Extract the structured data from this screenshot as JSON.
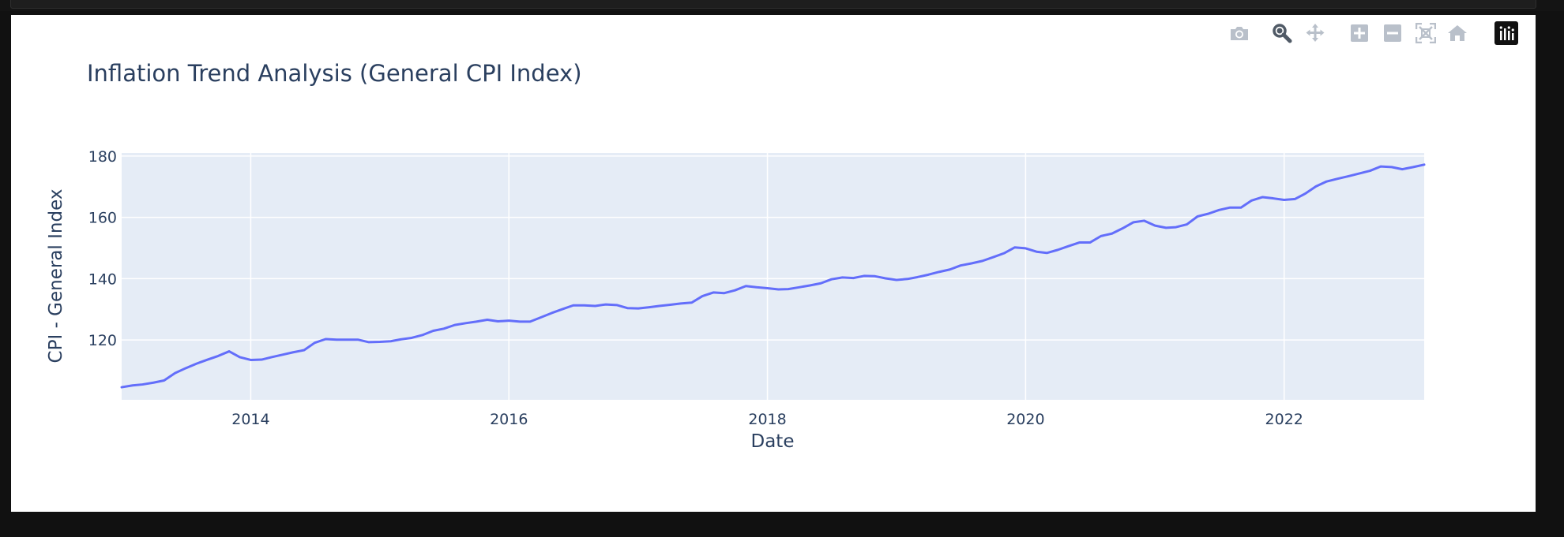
{
  "modebar": {
    "buttons": [
      {
        "name": "download-plot-button",
        "icon": "camera-icon"
      },
      {
        "name": "zoom-button",
        "icon": "magnifier-icon",
        "active": true
      },
      {
        "name": "pan-button",
        "icon": "pan-arrows-icon"
      },
      {
        "name": "zoom-in-button",
        "icon": "plus-square-icon"
      },
      {
        "name": "zoom-out-button",
        "icon": "minus-square-icon"
      },
      {
        "name": "autoscale-button",
        "icon": "autoscale-icon"
      },
      {
        "name": "reset-axes-button",
        "icon": "home-icon"
      },
      {
        "name": "plotly-logo-button",
        "icon": "plotly-logo-icon"
      }
    ]
  },
  "colors": {
    "line": "#636efa",
    "plot_bg": "#e5ecf6",
    "grid": "#ffffff",
    "text": "#2a3f5f",
    "modebar_icon": "#b9c0ca",
    "modebar_active": "#505a66"
  },
  "chart_data": {
    "type": "line",
    "title": "Inflation Trend Analysis (General CPI Index)",
    "xlabel": "Date",
    "ylabel": "CPI - General Index",
    "x_range": [
      "2013-01-01",
      "2023-02-01"
    ],
    "ylim": [
      100.5,
      181
    ],
    "x_ticks": [
      {
        "date": "2014-01-01",
        "label": "2014"
      },
      {
        "date": "2016-01-01",
        "label": "2016"
      },
      {
        "date": "2018-01-01",
        "label": "2018"
      },
      {
        "date": "2020-01-01",
        "label": "2020"
      },
      {
        "date": "2022-01-01",
        "label": "2022"
      }
    ],
    "y_ticks": [
      120,
      140,
      160,
      180
    ],
    "grid": true,
    "series": [
      {
        "x": [
          "2013-01-01",
          "2013-02-01",
          "2013-03-01",
          "2013-04-01",
          "2013-05-01",
          "2013-06-01",
          "2013-07-01",
          "2013-08-01",
          "2013-09-01",
          "2013-10-01",
          "2013-11-01",
          "2013-12-01",
          "2014-01-01",
          "2014-02-01",
          "2014-03-01",
          "2014-04-01",
          "2014-05-01",
          "2014-06-01",
          "2014-07-01",
          "2014-08-01",
          "2014-09-01",
          "2014-10-01",
          "2014-11-01",
          "2014-12-01",
          "2015-01-01",
          "2015-02-01",
          "2015-03-01",
          "2015-04-01",
          "2015-05-01",
          "2015-06-01",
          "2015-07-01",
          "2015-08-01",
          "2015-09-01",
          "2015-10-01",
          "2015-11-01",
          "2015-12-01",
          "2016-01-01",
          "2016-02-01",
          "2016-03-01",
          "2016-04-01",
          "2016-05-01",
          "2016-06-01",
          "2016-07-01",
          "2016-08-01",
          "2016-09-01",
          "2016-10-01",
          "2016-11-01",
          "2016-12-01",
          "2017-01-01",
          "2017-02-01",
          "2017-03-01",
          "2017-04-01",
          "2017-05-01",
          "2017-06-01",
          "2017-07-01",
          "2017-08-01",
          "2017-09-01",
          "2017-10-01",
          "2017-11-01",
          "2017-12-01",
          "2018-01-01",
          "2018-02-01",
          "2018-03-01",
          "2018-04-01",
          "2018-05-01",
          "2018-06-01",
          "2018-07-01",
          "2018-08-01",
          "2018-09-01",
          "2018-10-01",
          "2018-11-01",
          "2018-12-01",
          "2019-01-01",
          "2019-02-01",
          "2019-03-01",
          "2019-04-01",
          "2019-05-01",
          "2019-06-01",
          "2019-07-01",
          "2019-08-01",
          "2019-09-01",
          "2019-10-01",
          "2019-11-01",
          "2019-12-01",
          "2020-01-01",
          "2020-02-01",
          "2020-03-01",
          "2020-04-01",
          "2020-05-01",
          "2020-06-01",
          "2020-07-01",
          "2020-08-01",
          "2020-09-01",
          "2020-10-01",
          "2020-11-01",
          "2020-12-01",
          "2021-01-01",
          "2021-02-01",
          "2021-03-01",
          "2021-04-01",
          "2021-05-01",
          "2021-06-01",
          "2021-07-01",
          "2021-08-01",
          "2021-09-01",
          "2021-10-01",
          "2021-11-01",
          "2021-12-01",
          "2022-01-01",
          "2022-02-01",
          "2022-03-01",
          "2022-04-01",
          "2022-05-01",
          "2022-06-01",
          "2022-07-01",
          "2022-08-01",
          "2022-09-01",
          "2022-10-01",
          "2022-11-01",
          "2022-12-01",
          "2023-01-01",
          "2023-02-01"
        ],
        "y": [
          104.6,
          105.2,
          105.5,
          106.1,
          106.8,
          109.2,
          110.8,
          112.3,
          113.6,
          114.8,
          116.3,
          114.4,
          113.5,
          113.6,
          114.4,
          115.2,
          116.0,
          116.7,
          119.1,
          120.3,
          120.1,
          120.1,
          120.1,
          119.3,
          119.4,
          119.6,
          120.2,
          120.7,
          121.6,
          123.0,
          123.7,
          124.9,
          125.5,
          126.0,
          126.6,
          126.1,
          126.3,
          126.0,
          126.0,
          127.4,
          128.8,
          130.1,
          131.3,
          131.3,
          131.1,
          131.6,
          131.4,
          130.4,
          130.3,
          130.7,
          131.1,
          131.5,
          131.9,
          132.2,
          134.3,
          135.5,
          135.3,
          136.2,
          137.6,
          137.2,
          136.9,
          136.5,
          136.6,
          137.2,
          137.8,
          138.5,
          139.8,
          140.4,
          140.2,
          140.9,
          140.8,
          140.1,
          139.6,
          139.9,
          140.5,
          141.3,
          142.2,
          143.0,
          144.3,
          145.0,
          145.8,
          147.0,
          148.3,
          150.2,
          149.9,
          148.8,
          148.4,
          149.4,
          150.6,
          151.8,
          151.8,
          153.9,
          154.7,
          156.4,
          158.4,
          158.9,
          157.3,
          156.6,
          156.8,
          157.7,
          160.3,
          161.2,
          162.4,
          163.2,
          163.2,
          165.5,
          166.6,
          166.2,
          165.7,
          166.0,
          167.7,
          170.1,
          171.7,
          172.6,
          173.4,
          174.3,
          175.2,
          176.6,
          176.4,
          175.7,
          176.4,
          177.2
        ]
      }
    ]
  }
}
